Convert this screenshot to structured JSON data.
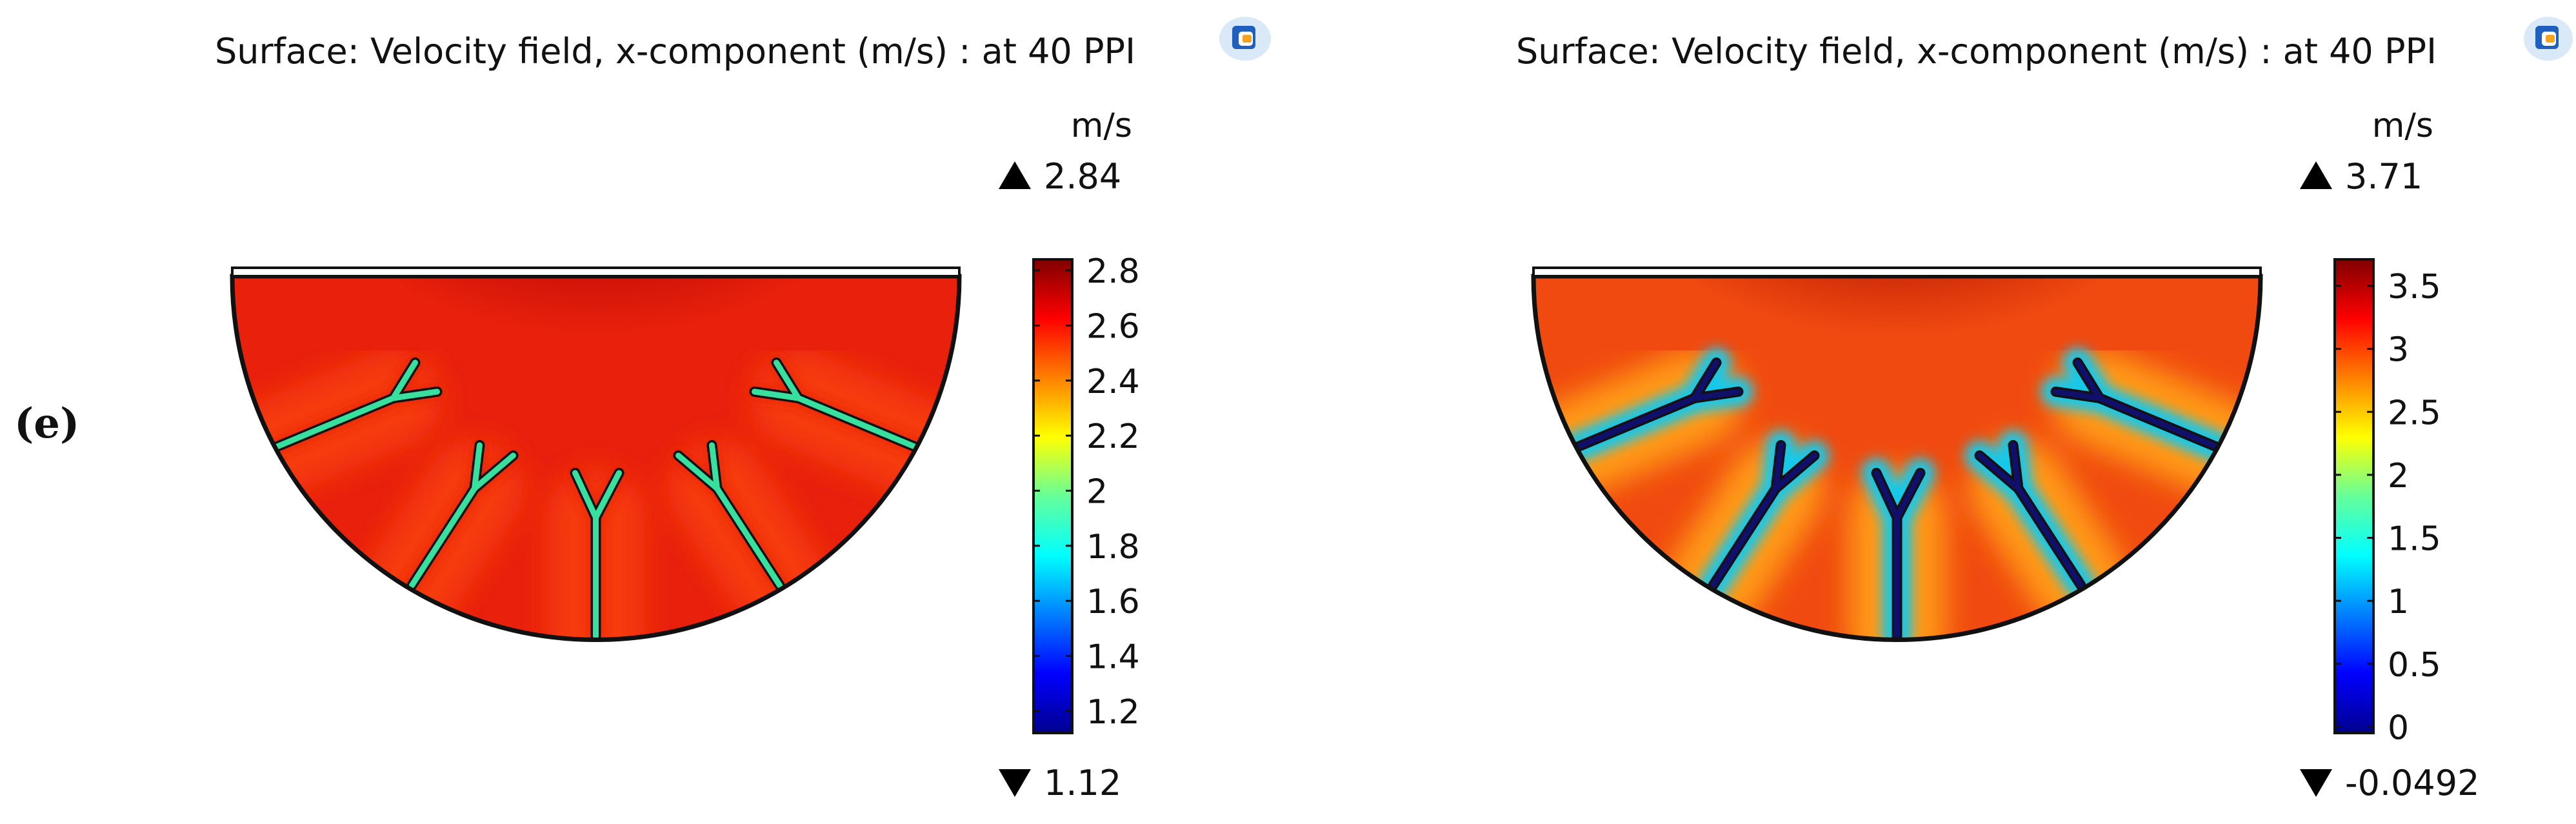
{
  "figure_label": "(e)",
  "panels": [
    {
      "title": "Surface: Velocity field, x-component (m/s) : at 40 PPI",
      "unit": "m/s",
      "max_label": "2.84",
      "min_label": "1.12",
      "max_value": 2.84,
      "min_value": 1.12,
      "tick_labels": [
        "2.8",
        "2.6",
        "2.4",
        "2.2",
        "2",
        "1.8",
        "1.6",
        "1.4",
        "1.2"
      ],
      "tick_values": [
        2.8,
        2.6,
        2.4,
        2.2,
        2.0,
        1.8,
        1.6,
        1.4,
        1.2
      ],
      "colors": {
        "background": "#e8200c",
        "hot": "#a80000",
        "wake": "#f63a0a",
        "branch": "#38e0a0",
        "halo": "#e8200c"
      },
      "icon": "comsol-logo-icon"
    },
    {
      "title": "Surface: Velocity field, x-component (m/s) : at 40 PPI",
      "unit": "m/s",
      "max_label": "3.71",
      "min_label": "-0.0492",
      "max_value": 3.71,
      "min_value": -0.0492,
      "tick_labels": [
        "3.5",
        "3",
        "2.5",
        "2",
        "1.5",
        "1",
        "0.5",
        "0"
      ],
      "tick_values": [
        3.5,
        3.0,
        2.5,
        2.0,
        1.5,
        1.0,
        0.5,
        0.0
      ],
      "colors": {
        "background": "#f04a10",
        "hot": "#9c0000",
        "wake": "#ff9a18",
        "branch": "#10106a",
        "halo": "#18c8e8"
      },
      "icon": "comsol-logo-icon"
    }
  ]
}
